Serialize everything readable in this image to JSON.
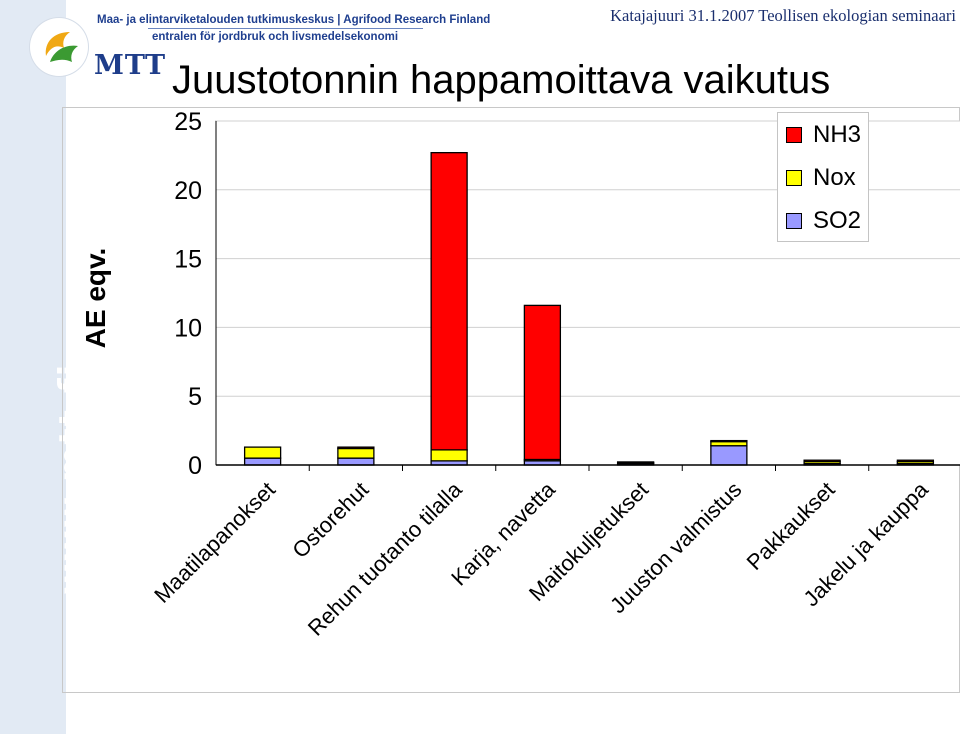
{
  "header": {
    "org_line_fi": "Maa- ja elintarviketalouden tutkimuskeskus | Agrifood Research Finland",
    "org_line_sv": "entralen för jordbruk och livsmedelsekonomi",
    "logo_text": "MTT",
    "event": "Katajajuuri 31.1.2007 Teollisen ekologian seminaari",
    "side_url": "www.mtt.fi"
  },
  "colors": {
    "NH3": "#ff0000",
    "Nox": "#ffff00",
    "SO2": "#9999ff",
    "side_band": "#e2eaf4"
  },
  "chart_data": {
    "type": "bar",
    "stacked": true,
    "title": "Juustotonnin happamoittava vaikutus",
    "ylabel": "AE eqv.",
    "xlabel": "",
    "ylim": [
      0,
      25
    ],
    "yticks": [
      0,
      5,
      10,
      15,
      20,
      25
    ],
    "grid": true,
    "legend": "top-right",
    "categories": [
      "Maatilapanokset",
      "Ostorehut",
      "Rehun tuotanto tilalla",
      "Karja, navetta",
      "Maitokuljetukset",
      "Juuston valmistus",
      "Pakkaukset",
      "Jakelu ja kauppa"
    ],
    "series": [
      {
        "name": "SO2",
        "values": [
          0.5,
          0.5,
          0.3,
          0.3,
          0.1,
          1.4,
          0.1,
          0.1
        ]
      },
      {
        "name": "Nox",
        "values": [
          0.8,
          0.7,
          0.8,
          0.1,
          0.05,
          0.3,
          0.15,
          0.15
        ]
      },
      {
        "name": "NH3",
        "values": [
          0.0,
          0.1,
          21.6,
          11.2,
          0.05,
          0.05,
          0.1,
          0.1
        ]
      }
    ]
  }
}
